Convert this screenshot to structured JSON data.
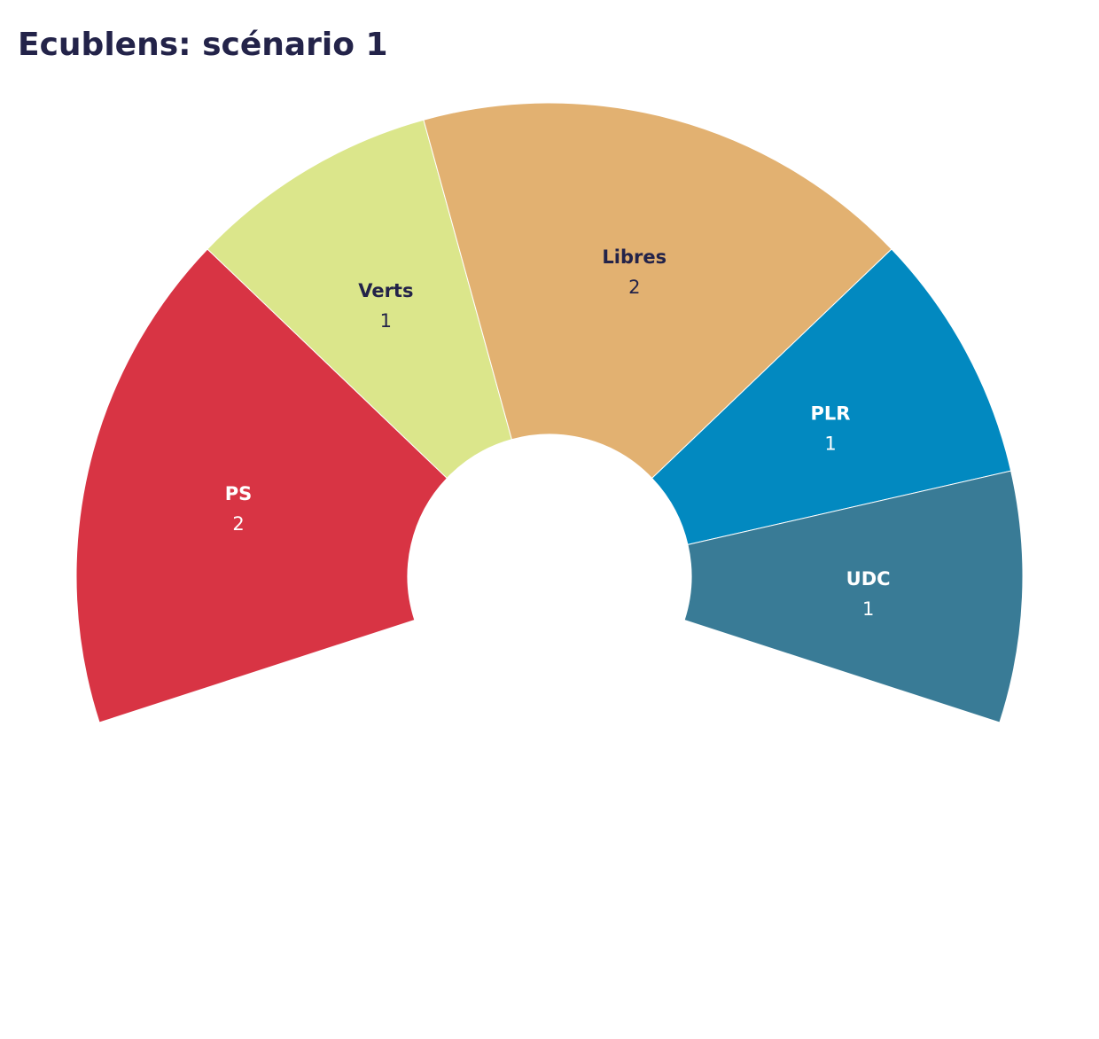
{
  "chart_data": {
    "type": "parliament",
    "title": "Ecublens: scénario 1",
    "categories": [
      "PS",
      "Verts",
      "Libres",
      "PLR",
      "UDC"
    ],
    "values": [
      2,
      1,
      2,
      1,
      1
    ],
    "colors": [
      "#d83444",
      "#dbe68b",
      "#e2b171",
      "#0289c0",
      "#397b96"
    ]
  }
}
